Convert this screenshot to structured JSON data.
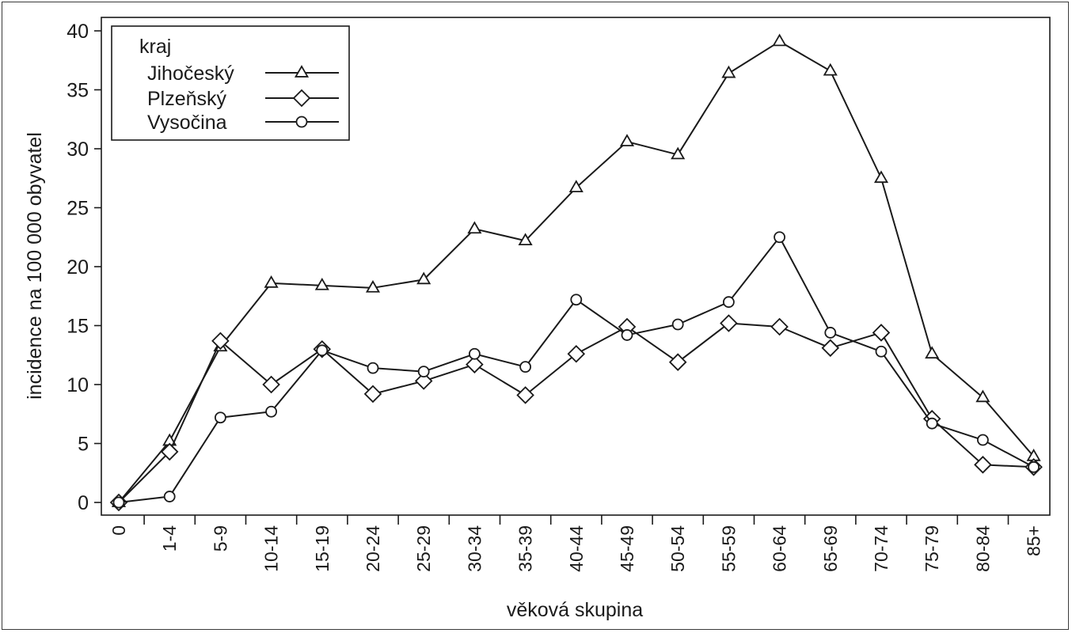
{
  "chart_data": {
    "type": "line",
    "title": "",
    "xlabel": "věková skupina",
    "ylabel": "incidence na 100 000 obyvatel",
    "categories": [
      "0",
      "1-4",
      "5-9",
      "10-14",
      "15-19",
      "20-24",
      "25-29",
      "30-34",
      "35-39",
      "40-44",
      "45-49",
      "50-54",
      "55-59",
      "60-64",
      "65-69",
      "70-74",
      "75-79",
      "80-84",
      "85+"
    ],
    "ylim": [
      0,
      40
    ],
    "yticks": [
      0,
      5,
      10,
      15,
      20,
      25,
      30,
      35,
      40
    ],
    "grid": false,
    "legend": {
      "title": "kraj",
      "placement": "top-left"
    },
    "series": [
      {
        "name": "Jihočeský",
        "marker": "triangle",
        "values": [
          0,
          5.2,
          13.2,
          18.6,
          18.4,
          18.2,
          18.9,
          23.2,
          22.2,
          26.7,
          30.6,
          29.5,
          36.4,
          39.1,
          36.6,
          27.5,
          12.6,
          8.9,
          3.9
        ]
      },
      {
        "name": "Plzeňský",
        "marker": "diamond",
        "values": [
          0,
          4.3,
          13.7,
          10.0,
          13.0,
          9.2,
          10.3,
          11.7,
          9.1,
          12.6,
          14.9,
          11.9,
          15.2,
          14.9,
          13.1,
          14.4,
          7.1,
          3.2,
          3.0
        ]
      },
      {
        "name": "Vysočina",
        "marker": "circle",
        "values": [
          0,
          0.5,
          7.2,
          7.7,
          12.9,
          11.4,
          11.1,
          12.6,
          11.5,
          17.2,
          14.2,
          15.1,
          17.0,
          22.5,
          14.4,
          12.8,
          6.7,
          5.3,
          3.0
        ]
      }
    ],
    "colors": {
      "line": "#1a1a1a",
      "axis": "#1a1a1a",
      "frame": "#3a3a3a",
      "background": "#ffffff"
    }
  }
}
